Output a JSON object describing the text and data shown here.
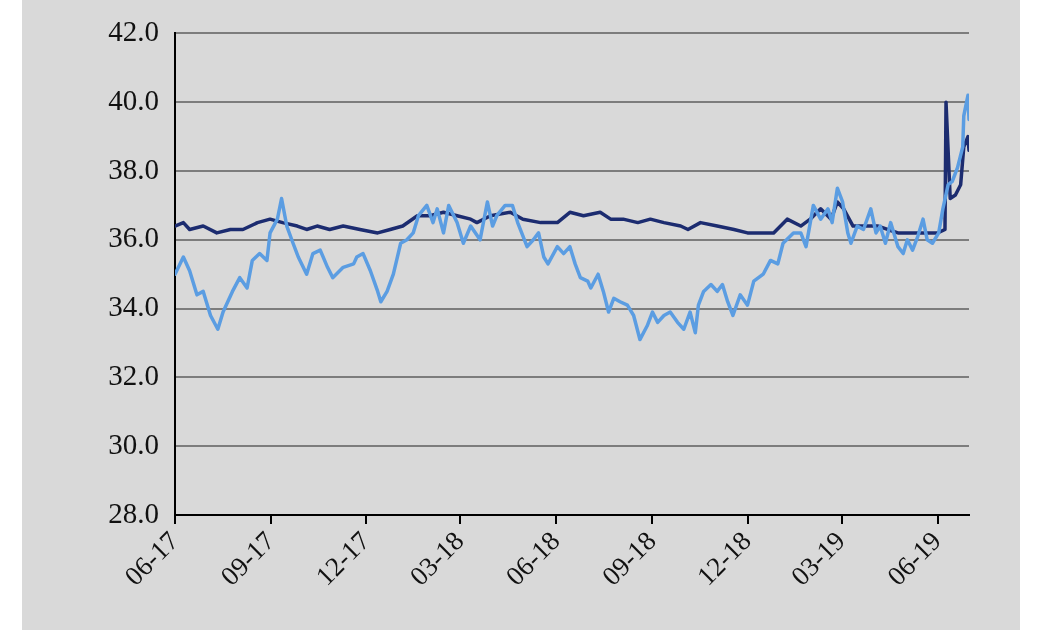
{
  "chart_data": {
    "type": "line",
    "xlim": [
      "2017-06-01",
      "2019-07-01"
    ],
    "xticks": [
      {
        "value": "2017-06-01",
        "label": "06-17"
      },
      {
        "value": "2017-09-01",
        "label": "09-17"
      },
      {
        "value": "2017-12-01",
        "label": "12-17"
      },
      {
        "value": "2018-03-01",
        "label": "03-18"
      },
      {
        "value": "2018-06-01",
        "label": "06-18"
      },
      {
        "value": "2018-09-01",
        "label": "09-18"
      },
      {
        "value": "2018-12-01",
        "label": "12-18"
      },
      {
        "value": "2019-03-01",
        "label": "03-19"
      },
      {
        "value": "2019-06-01",
        "label": "06-19"
      }
    ],
    "ylim": [
      28,
      42
    ],
    "yticks": [
      {
        "value": 28,
        "label": "28.0"
      },
      {
        "value": 30,
        "label": "30.0"
      },
      {
        "value": 32,
        "label": "32.0"
      },
      {
        "value": 34,
        "label": "34.0"
      },
      {
        "value": 36,
        "label": "36.0"
      },
      {
        "value": 38,
        "label": "38.0"
      },
      {
        "value": 40,
        "label": "40.0"
      },
      {
        "value": 42,
        "label": "42.0"
      }
    ],
    "grid": "y",
    "series": [
      {
        "color": "#1c2c70",
        "x": [
          "2017-06-01",
          "2017-06-09",
          "2017-06-15",
          "2017-06-28",
          "2017-07-11",
          "2017-07-24",
          "2017-08-05",
          "2017-08-19",
          "2017-08-31",
          "2017-09-12",
          "2017-09-26",
          "2017-10-05",
          "2017-10-15",
          "2017-10-27",
          "2017-11-09",
          "2017-11-25",
          "2017-12-12",
          "2017-12-24",
          "2018-01-05",
          "2018-01-19",
          "2018-01-31",
          "2018-02-13",
          "2018-02-26",
          "2018-03-11",
          "2018-03-17",
          "2018-03-30",
          "2018-04-18",
          "2018-04-30",
          "2018-05-17",
          "2018-06-02",
          "2018-06-14",
          "2018-06-27",
          "2018-07-13",
          "2018-07-23",
          "2018-08-04",
          "2018-08-18",
          "2018-08-30",
          "2018-09-12",
          "2018-09-28",
          "2018-10-05",
          "2018-10-17",
          "2018-11-02",
          "2018-11-18",
          "2018-12-01",
          "2018-12-13",
          "2018-12-26",
          "2019-01-08",
          "2019-01-21",
          "2019-01-30",
          "2019-02-09",
          "2019-02-19",
          "2019-02-25",
          "2019-03-03",
          "2019-03-12",
          "2019-03-22",
          "2019-04-05",
          "2019-04-14",
          "2019-04-24",
          "2019-05-06",
          "2019-05-19",
          "2019-06-01",
          "2019-06-08",
          "2019-06-09",
          "2019-06-12",
          "2019-06-13",
          "2019-06-18",
          "2019-06-23",
          "2019-06-26",
          "2019-06-30",
          "2019-07-01"
        ],
        "values": [
          36.4,
          36.5,
          36.3,
          36.4,
          36.2,
          36.3,
          36.3,
          36.5,
          36.6,
          36.5,
          36.4,
          36.3,
          36.4,
          36.3,
          36.4,
          36.3,
          36.2,
          36.3,
          36.4,
          36.7,
          36.7,
          36.8,
          36.7,
          36.6,
          36.5,
          36.7,
          36.8,
          36.6,
          36.5,
          36.5,
          36.8,
          36.7,
          36.8,
          36.6,
          36.6,
          36.5,
          36.6,
          36.5,
          36.4,
          36.3,
          36.5,
          36.4,
          36.3,
          36.2,
          36.2,
          36.2,
          36.6,
          36.4,
          36.6,
          36.9,
          36.6,
          37.1,
          36.9,
          36.4,
          36.4,
          36.4,
          36.3,
          36.2,
          36.2,
          36.2,
          36.2,
          36.3,
          40.0,
          37.9,
          37.2,
          37.3,
          37.6,
          38.7,
          39.0,
          38.6
        ]
      },
      {
        "color": "#5b9de2",
        "x": [
          "2017-06-01",
          "2017-06-09",
          "2017-06-15",
          "2017-06-22",
          "2017-06-28",
          "2017-07-05",
          "2017-07-12",
          "2017-07-17",
          "2017-07-26",
          "2017-08-02",
          "2017-08-09",
          "2017-08-14",
          "2017-08-21",
          "2017-08-28",
          "2017-08-31",
          "2017-09-07",
          "2017-09-11",
          "2017-09-16",
          "2017-09-22",
          "2017-09-27",
          "2017-10-05",
          "2017-10-11",
          "2017-10-18",
          "2017-10-25",
          "2017-10-30",
          "2017-11-09",
          "2017-11-19",
          "2017-11-22",
          "2017-11-28",
          "2017-12-05",
          "2017-12-12",
          "2017-12-15",
          "2017-12-21",
          "2017-12-27",
          "2018-01-03",
          "2018-01-09",
          "2018-01-15",
          "2018-01-20",
          "2018-01-28",
          "2018-02-03",
          "2018-02-07",
          "2018-02-13",
          "2018-02-18",
          "2018-02-26",
          "2018-03-04",
          "2018-03-11",
          "2018-03-20",
          "2018-03-27",
          "2018-04-01",
          "2018-04-05",
          "2018-04-13",
          "2018-04-20",
          "2018-04-25",
          "2018-05-04",
          "2018-05-10",
          "2018-05-15",
          "2018-05-20",
          "2018-05-24",
          "2018-06-02",
          "2018-06-08",
          "2018-06-14",
          "2018-06-19",
          "2018-06-24",
          "2018-07-01",
          "2018-07-04",
          "2018-07-11",
          "2018-07-16",
          "2018-07-21",
          "2018-07-26",
          "2018-08-01",
          "2018-08-08",
          "2018-08-14",
          "2018-08-20",
          "2018-08-27",
          "2018-09-01",
          "2018-09-06",
          "2018-09-12",
          "2018-09-18",
          "2018-09-25",
          "2018-10-01",
          "2018-10-07",
          "2018-10-12",
          "2018-10-15",
          "2018-10-20",
          "2018-10-27",
          "2018-11-02",
          "2018-11-07",
          "2018-11-12",
          "2018-11-17",
          "2018-11-24",
          "2018-12-01",
          "2018-12-07",
          "2018-12-16",
          "2018-12-23",
          "2018-12-30",
          "2019-01-04",
          "2019-01-14",
          "2019-01-21",
          "2019-01-26",
          "2019-02-02",
          "2019-02-09",
          "2019-02-16",
          "2019-02-20",
          "2019-02-25",
          "2019-03-02",
          "2019-03-07",
          "2019-03-10",
          "2019-03-16",
          "2019-03-22",
          "2019-03-29",
          "2019-04-03",
          "2019-04-07",
          "2019-04-12",
          "2019-04-17",
          "2019-04-24",
          "2019-04-29",
          "2019-05-03",
          "2019-05-08",
          "2019-05-13",
          "2019-05-18",
          "2019-05-22",
          "2019-05-27",
          "2019-06-02",
          "2019-06-06",
          "2019-06-11",
          "2019-06-15",
          "2019-06-20",
          "2019-06-25",
          "2019-06-26",
          "2019-06-30",
          "2019-07-01"
        ],
        "values": [
          35.0,
          35.5,
          35.1,
          34.4,
          34.5,
          33.8,
          33.4,
          33.9,
          34.5,
          34.9,
          34.6,
          35.4,
          35.6,
          35.4,
          36.2,
          36.6,
          37.2,
          36.4,
          35.9,
          35.5,
          35.0,
          35.6,
          35.7,
          35.2,
          34.9,
          35.2,
          35.3,
          35.5,
          35.6,
          35.1,
          34.5,
          34.2,
          34.5,
          35.0,
          35.9,
          36.0,
          36.2,
          36.7,
          37.0,
          36.5,
          36.9,
          36.2,
          37.0,
          36.5,
          35.9,
          36.4,
          36.0,
          37.1,
          36.4,
          36.7,
          37.0,
          37.0,
          36.5,
          35.8,
          36.0,
          36.2,
          35.5,
          35.3,
          35.8,
          35.6,
          35.8,
          35.3,
          34.9,
          34.8,
          34.6,
          35.0,
          34.5,
          33.9,
          34.3,
          34.2,
          34.1,
          33.8,
          33.1,
          33.5,
          33.9,
          33.6,
          33.8,
          33.9,
          33.6,
          33.4,
          33.9,
          33.3,
          34.1,
          34.5,
          34.7,
          34.5,
          34.7,
          34.2,
          33.8,
          34.4,
          34.1,
          34.8,
          35.0,
          35.4,
          35.3,
          35.9,
          36.2,
          36.2,
          35.8,
          37.0,
          36.6,
          36.9,
          36.5,
          37.5,
          37.1,
          36.2,
          35.9,
          36.4,
          36.3,
          36.9,
          36.2,
          36.4,
          35.9,
          36.5,
          35.8,
          35.6,
          36.0,
          35.7,
          36.1,
          36.6,
          36.0,
          35.9,
          36.2,
          36.9,
          37.6,
          37.7,
          38.1,
          38.7,
          39.6,
          40.2,
          39.5
        ]
      }
    ]
  }
}
